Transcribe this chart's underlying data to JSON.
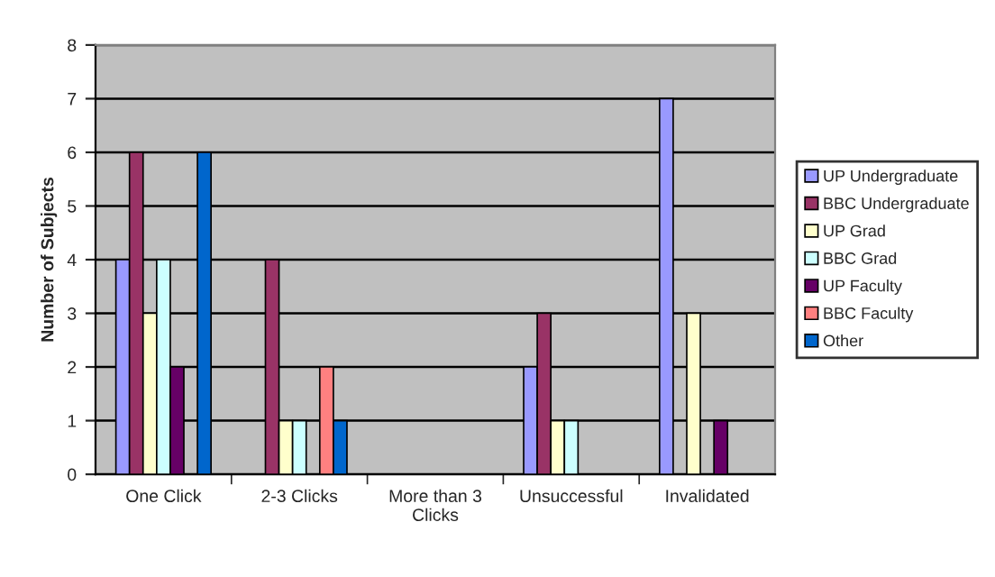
{
  "chart_data": {
    "type": "bar",
    "ylabel": "Number of Subjects",
    "categories": [
      "One Click",
      "2-3 Clicks",
      "More than 3\nClicks",
      "Unsuccessful",
      "Invalidated"
    ],
    "series": [
      {
        "name": "UP Undergraduate",
        "color": "#9999ff",
        "values": [
          4,
          0,
          0,
          2,
          7
        ]
      },
      {
        "name": "BBC Undergraduate",
        "color": "#993366",
        "values": [
          6,
          4,
          0,
          3,
          0
        ]
      },
      {
        "name": "UP Grad",
        "color": "#ffffcc",
        "values": [
          3,
          1,
          0,
          1,
          3
        ]
      },
      {
        "name": "BBC Grad",
        "color": "#ccffff",
        "values": [
          4,
          1,
          0,
          1,
          0
        ]
      },
      {
        "name": "UP Faculty",
        "color": "#660066",
        "values": [
          2,
          0,
          0,
          0,
          1
        ]
      },
      {
        "name": "BBC Faculty",
        "color": "#ff8080",
        "values": [
          0,
          2,
          0,
          0,
          0
        ]
      },
      {
        "name": "Other",
        "color": "#0066cc",
        "values": [
          6,
          1,
          0,
          0,
          0
        ]
      }
    ],
    "ylim": [
      0,
      8
    ],
    "yticks": [
      0,
      1,
      2,
      3,
      4,
      5,
      6,
      7,
      8
    ],
    "grid": "y",
    "legend": "right"
  }
}
